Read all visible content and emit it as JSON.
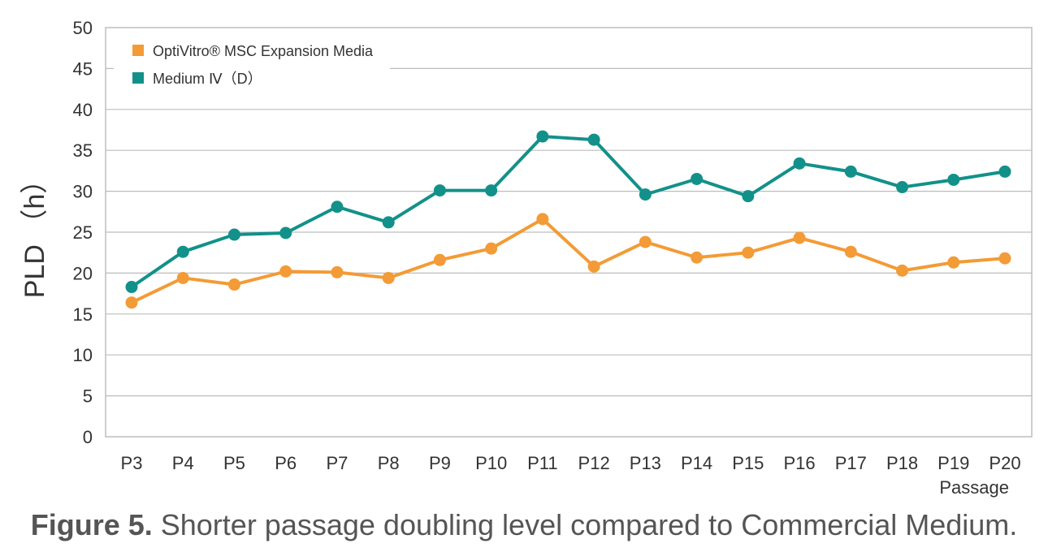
{
  "chart_data": {
    "type": "line",
    "xlabel": "Passage",
    "ylabel": "PLD （h）",
    "ylim": [
      0,
      50
    ],
    "yticks": [
      "0",
      "5",
      "10",
      "15",
      "20",
      "25",
      "30",
      "35",
      "40",
      "45",
      "50"
    ],
    "categories": [
      "P3",
      "P4",
      "P5",
      "P6",
      "P7",
      "P8",
      "P9",
      "P10",
      "P11",
      "P12",
      "P13",
      "P14",
      "P15",
      "P16",
      "P17",
      "P18",
      "P19",
      "P20"
    ],
    "grid": true,
    "legend_position": "top-left",
    "series": [
      {
        "name": "OptiVitro® MSC Expansion Media",
        "color": "#F39B36",
        "values": [
          16.4,
          19.4,
          18.6,
          20.2,
          20.1,
          19.4,
          21.6,
          23.0,
          26.6,
          20.8,
          23.8,
          21.9,
          22.5,
          24.3,
          22.6,
          20.3,
          21.3,
          21.8
        ]
      },
      {
        "name": "Medium Ⅳ（D）",
        "color": "#12918A",
        "values": [
          18.3,
          22.6,
          24.7,
          24.9,
          28.1,
          26.2,
          30.1,
          30.1,
          36.7,
          36.3,
          29.6,
          31.5,
          29.4,
          33.4,
          32.4,
          30.5,
          31.4,
          32.4
        ]
      }
    ]
  },
  "caption": {
    "lead": "Figure 5.",
    "text": " Shorter passage doubling level compared to Commercial Medium."
  }
}
